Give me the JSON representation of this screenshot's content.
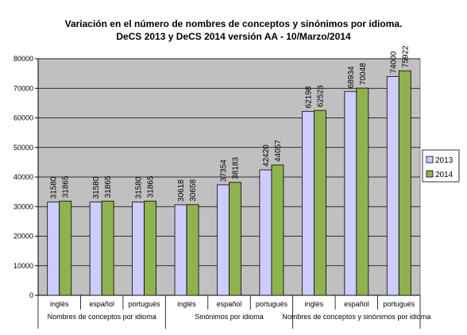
{
  "chart_data": {
    "type": "bar",
    "title_line1": "Variación en el número de nombres de conceptos y sinónimos por idioma.",
    "title_line2": "DeCS 2013 y DeCS 2014 versión AA  - 10/Marzo/2014",
    "categories": [
      "inglés",
      "español",
      "portugués",
      "inglés",
      "español",
      "portugués",
      "inglés",
      "español",
      "portugués"
    ],
    "groups": [
      {
        "label": "Nombres de conceptos por idioma",
        "span": 3
      },
      {
        "label": "Sinónimos por idioma",
        "span": 3
      },
      {
        "label": "Nombres de conceptos y sinónimos por idioma",
        "span": 3
      }
    ],
    "series": [
      {
        "name": "2013",
        "color": "#ccccff",
        "values": [
          31580,
          31580,
          31580,
          30618,
          37354,
          42420,
          62198,
          68934,
          74000
        ]
      },
      {
        "name": "2014",
        "color": "#8fb24f",
        "values": [
          31865,
          31865,
          31865,
          30658,
          38183,
          44057,
          62523,
          70048,
          75922
        ]
      }
    ],
    "ylim": [
      0,
      80000
    ],
    "yticks": [
      0,
      10000,
      20000,
      30000,
      40000,
      50000,
      60000,
      70000,
      80000
    ],
    "plot_background": "#c0c0c0",
    "grid": true,
    "legend_position": "right"
  }
}
